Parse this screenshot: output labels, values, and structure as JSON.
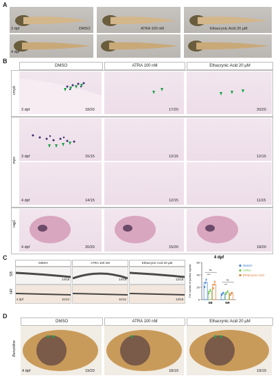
{
  "panels": {
    "A": {
      "label": "A",
      "conditions": [
        "DMSO",
        "ATRA 100 nM",
        "Ethacrynic Acid 20 µM"
      ],
      "stages": [
        "3 dpf",
        "4 dpf"
      ]
    },
    "B": {
      "label": "B",
      "headers": [
        "DMSO",
        "ATRA 100 nM",
        "Ethacrynic Acid 20 µM"
      ],
      "rows": [
        {
          "gene": "cmyb",
          "stage": "3 dpf",
          "counts": [
            "18/20",
            "17/20",
            "20/20"
          ]
        },
        {
          "gene": "mpx",
          "stage": "3 dpf",
          "counts": [
            "15/15",
            "12/15",
            "12/15"
          ]
        },
        {
          "gene": "",
          "stage": "4 dpf",
          "counts": [
            "14/15",
            "12/15",
            "11/15"
          ]
        },
        {
          "gene": "rag1",
          "stage": "4 dpf",
          "counts": [
            "20/20",
            "15/20",
            "18/20"
          ]
        }
      ]
    },
    "C": {
      "label": "C",
      "headers": [
        "DMSO",
        "ATRA 100 nM",
        "Ethacrynic Acid 20 µM"
      ],
      "row_labels": [
        "SB",
        "NR"
      ],
      "stage": "4 dpf",
      "counts_sb": [
        "14/15",
        "14/15",
        "12/15"
      ],
      "counts_nr": [
        "11/13",
        "11/12",
        "12/15"
      ]
    },
    "D": {
      "label": "D",
      "headers": [
        "DMSO",
        "ATRA 100 nM",
        "Ethacrynic Acid 20 µM"
      ],
      "stain": "Benzidine",
      "stage": "4 dpf",
      "counts": [
        "19/20",
        "18/19",
        "19/19"
      ]
    }
  },
  "chart_data": {
    "type": "scatter",
    "title": "4 dpf",
    "ylabel": "The number of positive signals",
    "categories": [
      "SB",
      "NR"
    ],
    "ylim": [
      0,
      60
    ],
    "yticks": [
      0,
      20,
      40,
      60
    ],
    "series": [
      {
        "name": "DMSO",
        "color": "#3a7bd5",
        "means": [
          28,
          10
        ]
      },
      {
        "name": "ATRA",
        "color": "#6cc04a",
        "means": [
          14,
          12
        ]
      },
      {
        "name": "Ethacrynic Acid",
        "color": "#e07a2e",
        "means": [
          25,
          10
        ]
      }
    ],
    "significance": [
      {
        "group": "SB",
        "pairs": [
          "ns",
          "****"
        ]
      },
      {
        "group": "NR",
        "pairs": [
          "ns",
          "***"
        ]
      }
    ]
  },
  "colors": {
    "arrow": "#1aa34a",
    "stainB": "#3b2a6e",
    "stainD": "#5a3a2a"
  }
}
